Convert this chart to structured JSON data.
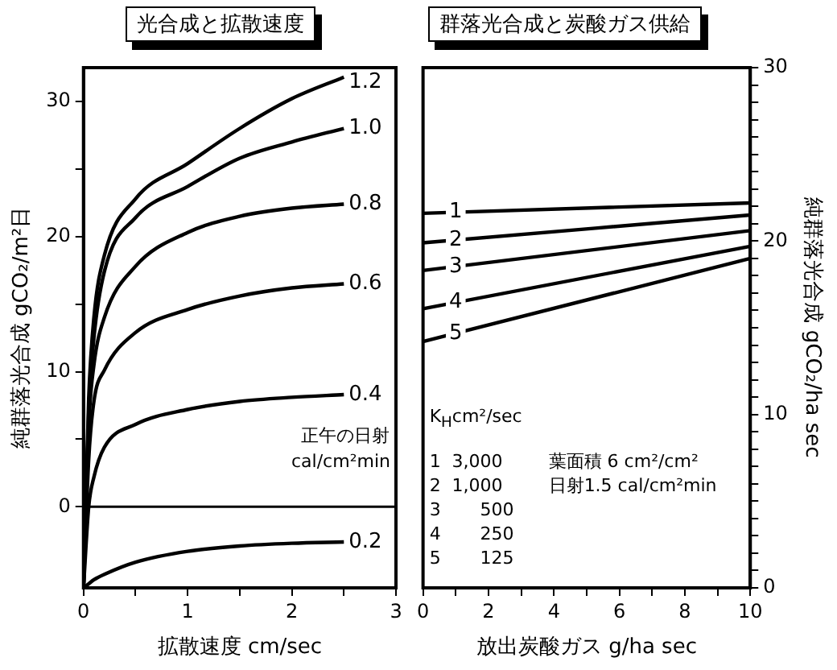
{
  "chart_data": [
    {
      "type": "line",
      "title": "光合成と拡散速度",
      "xlabel": "拡散速度 cm/sec",
      "ylabel": "純群落光合成 gCO₂/m²日",
      "marker": "none",
      "x": [
        0,
        0.05,
        0.1,
        0.2,
        0.5,
        1,
        1.5,
        2,
        2.5
      ],
      "series": [
        {
          "name": "1.2",
          "color": "#000000",
          "values": [
            -6,
            8,
            14,
            18.6,
            22.8,
            25.4,
            28,
            30.2,
            31.8
          ]
        },
        {
          "name": "1.0",
          "color": "#000000",
          "values": [
            -6,
            7,
            12.5,
            17.4,
            21.4,
            23.7,
            25.8,
            27,
            28
          ]
        },
        {
          "name": "0.8",
          "color": "#000000",
          "values": [
            -6,
            6,
            10.5,
            14,
            17.8,
            20.3,
            21.5,
            22.1,
            22.4
          ]
        },
        {
          "name": "0.6",
          "color": "#000000",
          "values": [
            -6,
            3.5,
            7.8,
            10.1,
            12.9,
            14.6,
            15.6,
            16.2,
            16.5
          ]
        },
        {
          "name": "0.4",
          "color": "#000000",
          "values": [
            -6,
            0,
            2.2,
            4.4,
            6.1,
            7.2,
            7.8,
            8.1,
            8.3
          ]
        },
        {
          "name": "0.2",
          "color": "#000000",
          "values": [
            -6,
            -5.7,
            -5.4,
            -5,
            -4.1,
            -3.3,
            -2.9,
            -2.7,
            -2.6
          ]
        }
      ],
      "xlim": [
        0,
        3
      ],
      "xticks": [
        0,
        {
          "value": 0.5,
          "label": null
        },
        1,
        {
          "value": 1.5,
          "label": null
        },
        2,
        {
          "value": 2.5,
          "label": null
        },
        3
      ],
      "ylim": [
        -6,
        32.5
      ],
      "yticks": [
        0,
        {
          "value": 5,
          "label": null
        },
        10,
        {
          "value": 15,
          "label": null
        },
        20,
        {
          "value": 25,
          "label": null
        },
        30
      ],
      "ref_lines": [
        {
          "axis": "y",
          "value": 0,
          "color": "#000000"
        }
      ],
      "annotations": [
        "正午の日射",
        "cal/cm²min"
      ]
    },
    {
      "type": "line",
      "title": "群落光合成と炭酸ガス供給",
      "xlabel": "放出炭酸ガス g/ha sec",
      "y2label": "純群落光合成 gCO₂/ha sec",
      "marker": "none",
      "x": [
        0,
        10
      ],
      "series": [
        {
          "name": "1",
          "color": "#000000",
          "axis": "y2",
          "values": [
            21.6,
            22.2
          ]
        },
        {
          "name": "2",
          "color": "#000000",
          "axis": "y2",
          "values": [
            19.9,
            21.5
          ]
        },
        {
          "name": "3",
          "color": "#000000",
          "axis": "y2",
          "values": [
            18.3,
            20.6
          ]
        },
        {
          "name": "4",
          "color": "#000000",
          "axis": "y2",
          "values": [
            16.1,
            19.7
          ]
        },
        {
          "name": "5",
          "color": "#000000",
          "axis": "y2",
          "values": [
            14.2,
            19.0
          ]
        }
      ],
      "xlim": [
        0,
        10
      ],
      "xticks": [
        0,
        {
          "value": 1,
          "label": null
        },
        2,
        {
          "value": 3,
          "label": null
        },
        4,
        {
          "value": 5,
          "label": null
        },
        6,
        {
          "value": 7,
          "label": null
        },
        8,
        {
          "value": 9,
          "label": null
        },
        10
      ],
      "y2lim": [
        0,
        30
      ],
      "y2ticks": [
        0,
        {
          "value": 1,
          "label": null
        },
        {
          "value": 2,
          "label": null
        },
        {
          "value": 3,
          "label": null
        },
        {
          "value": 4,
          "label": null
        },
        {
          "value": 5,
          "label": null
        },
        {
          "value": 6,
          "label": null
        },
        {
          "value": 7,
          "label": null
        },
        {
          "value": 8,
          "label": null
        },
        {
          "value": 9,
          "label": null
        },
        10,
        {
          "value": 11,
          "label": null
        },
        {
          "value": 12,
          "label": null
        },
        {
          "value": 13,
          "label": null
        },
        {
          "value": 14,
          "label": null
        },
        {
          "value": 15,
          "label": null
        },
        {
          "value": 16,
          "label": null
        },
        {
          "value": 17,
          "label": null
        },
        {
          "value": 18,
          "label": null
        },
        {
          "value": 19,
          "label": null
        },
        20,
        {
          "value": 21,
          "label": null
        },
        {
          "value": 22,
          "label": null
        },
        {
          "value": 23,
          "label": null
        },
        {
          "value": 24,
          "label": null
        },
        {
          "value": 25,
          "label": null
        },
        {
          "value": 26,
          "label": null
        },
        {
          "value": 27,
          "label": null
        },
        {
          "value": 28,
          "label": null
        },
        {
          "value": 29,
          "label": null
        },
        30
      ],
      "annotations": [
        "K$_{H}$cm²/sec",
        "1  3,000",
        "2  1,000",
        "3       500",
        "4       250",
        "5       125",
        "葉面積 6 cm²/cm²",
        "日射1.5 cal/cm²min"
      ]
    }
  ]
}
